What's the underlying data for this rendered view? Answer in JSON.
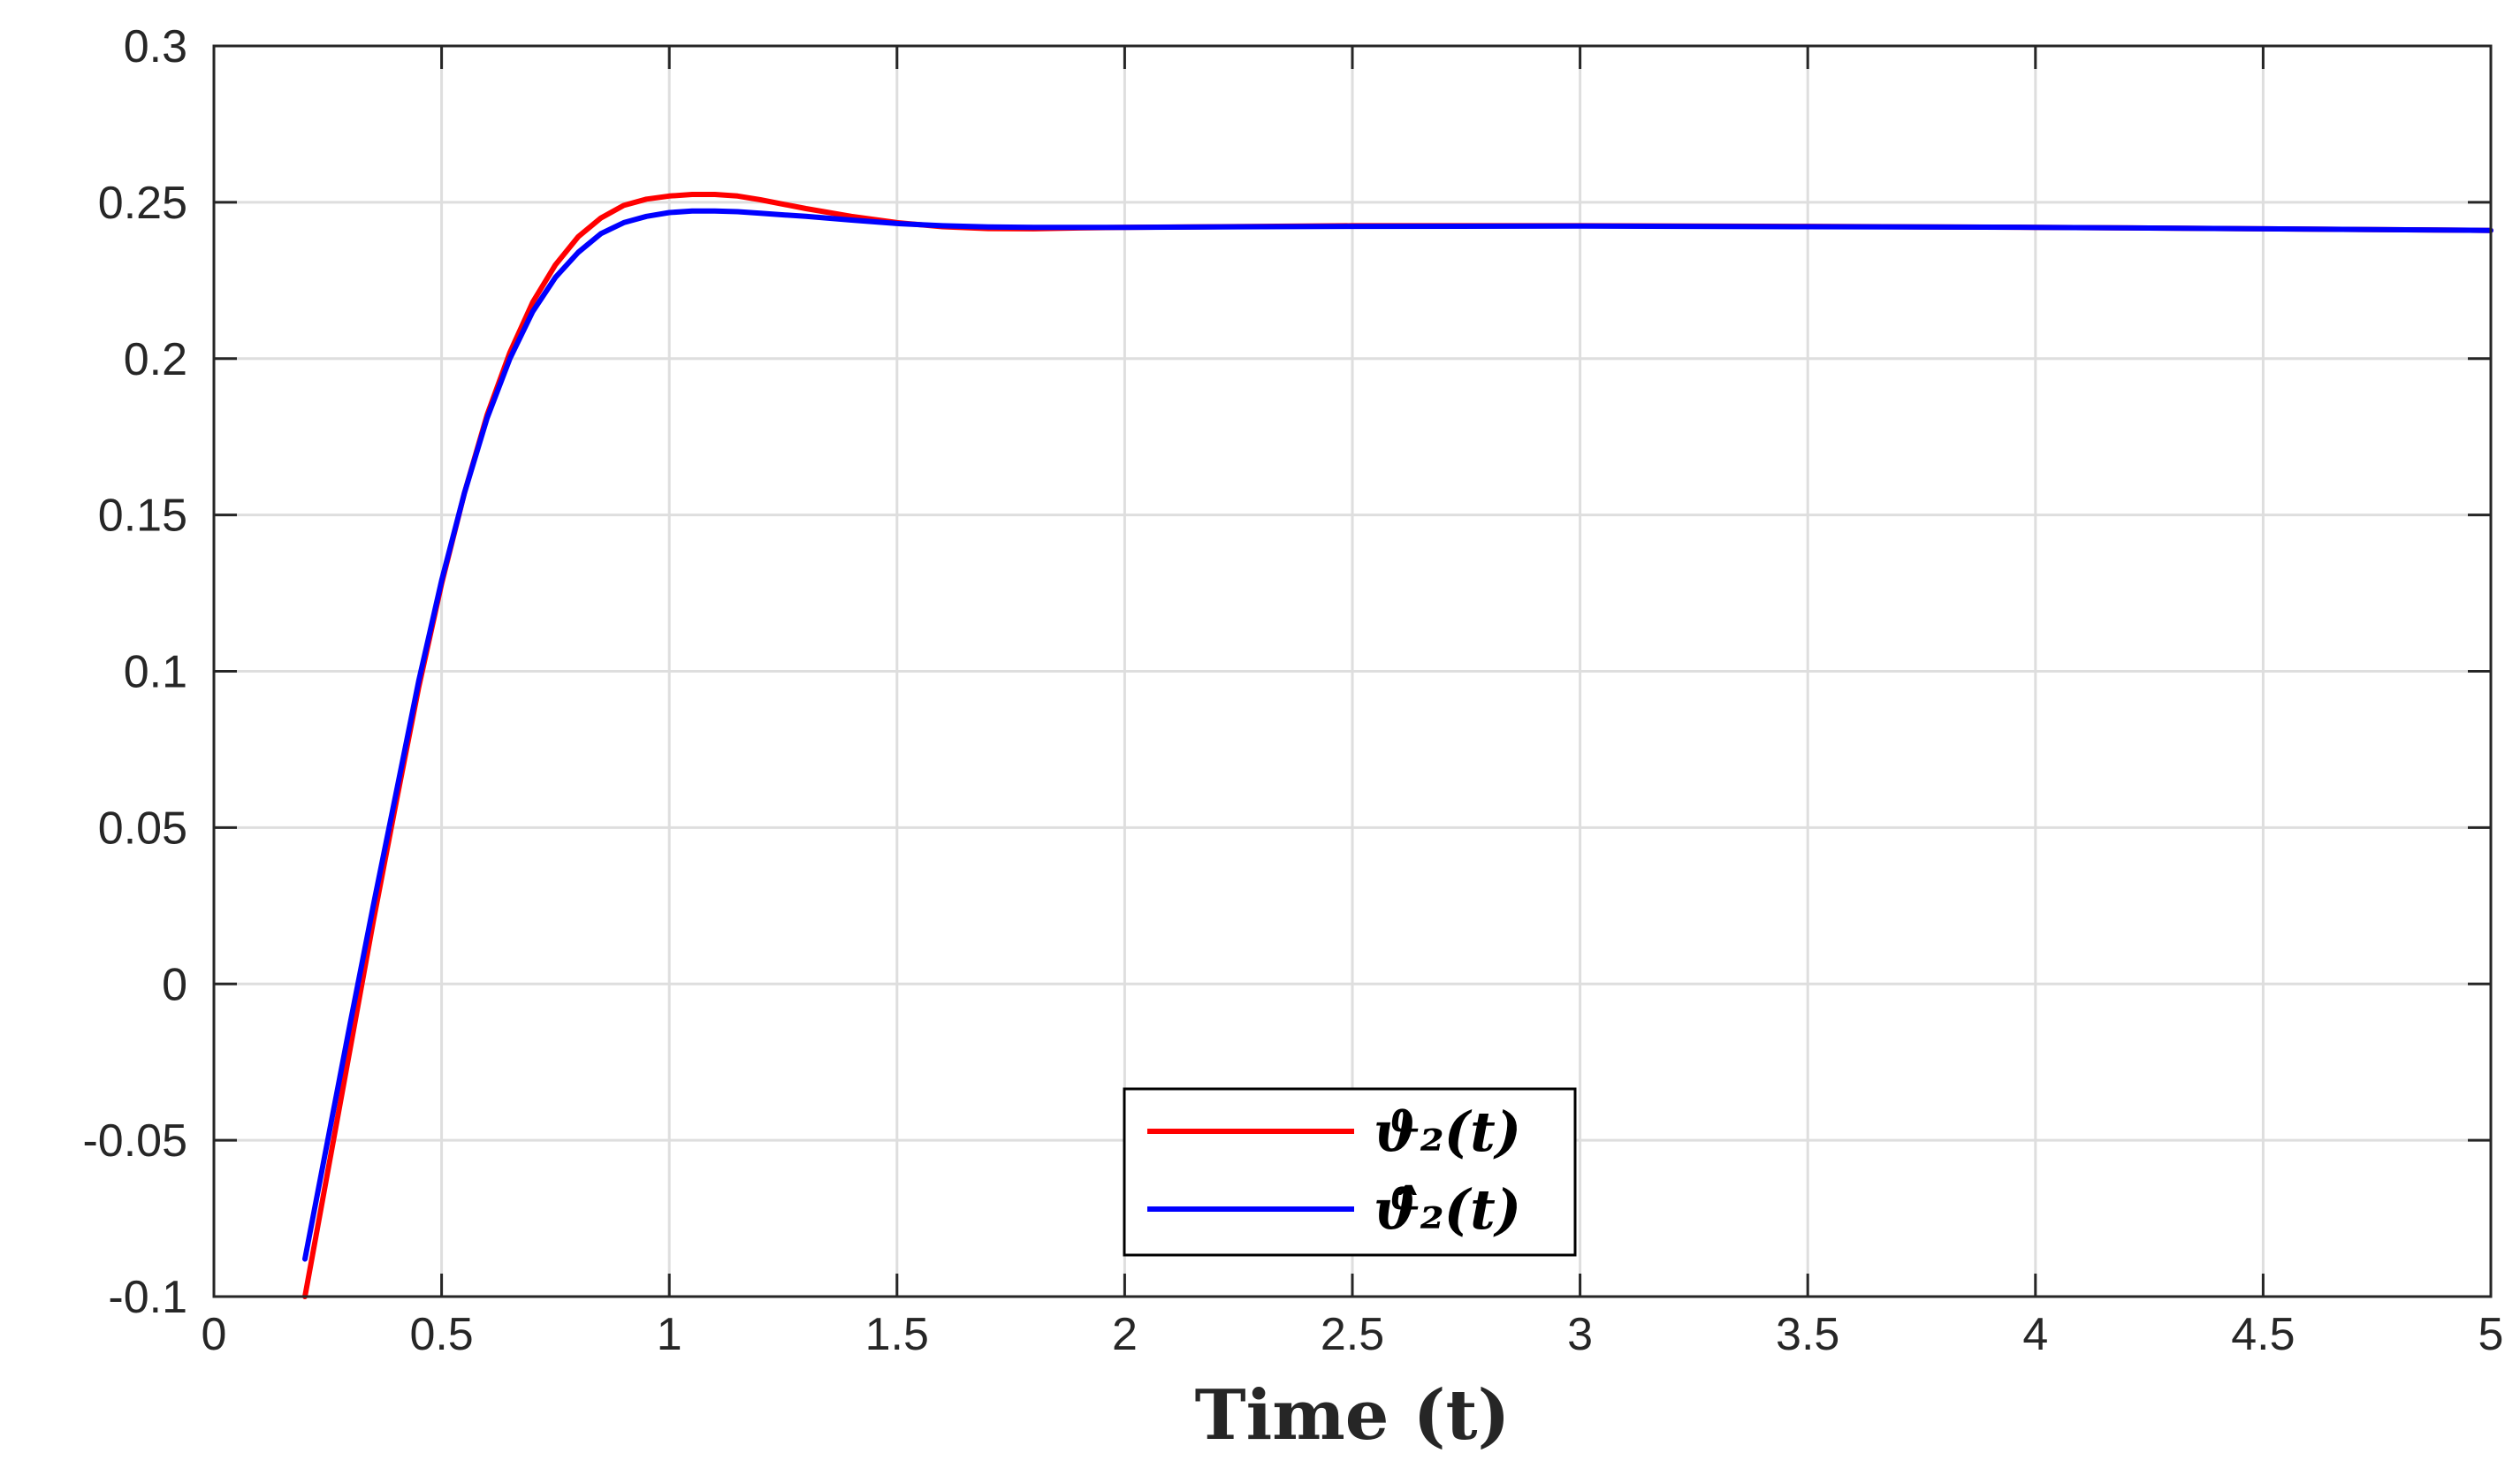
{
  "chart_data": {
    "type": "line",
    "title": "",
    "xlabel": "Time (t)",
    "ylabel": "",
    "xlim": [
      0,
      5
    ],
    "ylim": [
      -0.1,
      0.3
    ],
    "xticks": [
      0,
      0.5,
      1,
      1.5,
      2,
      2.5,
      3,
      3.5,
      4,
      4.5,
      5
    ],
    "xtick_labels": [
      "0",
      "0.5",
      "1",
      "1.5",
      "2",
      "2.5",
      "3",
      "3.5",
      "4",
      "4.5",
      "5"
    ],
    "yticks": [
      -0.1,
      -0.05,
      0,
      0.05,
      0.1,
      0.15,
      0.2,
      0.25,
      0.3
    ],
    "ytick_labels": [
      "-0.1",
      "-0.05",
      "0",
      "0.05",
      "0.1",
      "0.15",
      "0.2",
      "0.25",
      "0.3"
    ],
    "grid": true,
    "legend_position": "bottom-center",
    "series": [
      {
        "name": "ϑ₂(t)",
        "color": "#ff0000",
        "x": [
          0.2,
          0.25,
          0.3,
          0.35,
          0.4,
          0.45,
          0.5,
          0.55,
          0.6,
          0.65,
          0.7,
          0.75,
          0.8,
          0.85,
          0.9,
          0.95,
          1.0,
          1.05,
          1.1,
          1.15,
          1.2,
          1.3,
          1.4,
          1.5,
          1.6,
          1.7,
          1.8,
          1.9,
          2.0,
          2.5,
          3.0,
          3.5,
          4.0,
          4.5,
          5.0
        ],
        "y": [
          -0.1,
          -0.06,
          -0.02,
          0.02,
          0.058,
          0.095,
          0.128,
          0.157,
          0.182,
          0.202,
          0.218,
          0.23,
          0.239,
          0.245,
          0.249,
          0.251,
          0.252,
          0.2525,
          0.2525,
          0.252,
          0.2508,
          0.248,
          0.2455,
          0.2435,
          0.2422,
          0.2416,
          0.2415,
          0.2418,
          0.242,
          0.2425,
          0.2425,
          0.2423,
          0.242,
          0.2415,
          0.241
        ]
      },
      {
        "name": "ϑ̂₂(t)",
        "color": "#0000ff",
        "x": [
          0.2,
          0.25,
          0.3,
          0.35,
          0.4,
          0.45,
          0.5,
          0.55,
          0.6,
          0.65,
          0.7,
          0.75,
          0.8,
          0.85,
          0.9,
          0.95,
          1.0,
          1.05,
          1.1,
          1.15,
          1.2,
          1.3,
          1.4,
          1.5,
          1.6,
          1.7,
          1.8,
          1.9,
          2.0,
          2.5,
          3.0,
          3.5,
          4.0,
          4.5,
          5.0
        ],
        "y": [
          -0.088,
          -0.05,
          -0.012,
          0.025,
          0.061,
          0.097,
          0.129,
          0.157,
          0.181,
          0.2,
          0.215,
          0.226,
          0.234,
          0.24,
          0.2435,
          0.2455,
          0.2467,
          0.2472,
          0.2472,
          0.247,
          0.2465,
          0.2455,
          0.2443,
          0.2432,
          0.2425,
          0.2421,
          0.242,
          0.242,
          0.242,
          0.2423,
          0.2424,
          0.2422,
          0.242,
          0.2415,
          0.241
        ]
      }
    ]
  },
  "legend": {
    "entries": [
      {
        "label": "ϑ₂(t)",
        "color": "#ff0000"
      },
      {
        "label": "ϑ̂₂(t)",
        "color": "#0000ff"
      }
    ]
  }
}
